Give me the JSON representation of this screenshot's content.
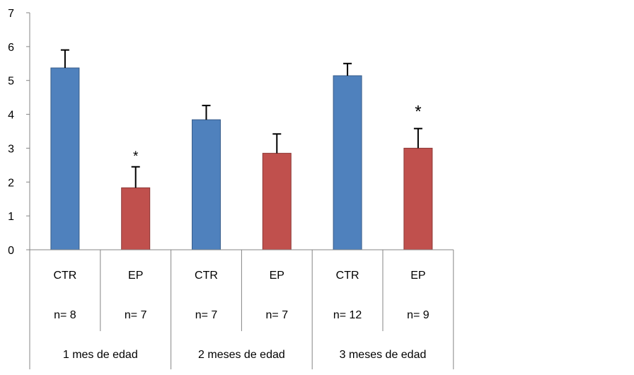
{
  "chart_data": {
    "type": "bar",
    "title": "",
    "xlabel": "",
    "ylabel": "",
    "ylim": [
      0,
      7
    ],
    "yticks": [
      "0",
      "1",
      "2",
      "3",
      "4",
      "5",
      "6",
      "7"
    ],
    "grid": false,
    "legend": "none",
    "categories": [
      "CTR",
      "EP",
      "CTR",
      "EP",
      "CTR",
      "EP"
    ],
    "n_labels": [
      "n= 8",
      "n= 7",
      "n= 7",
      "n= 7",
      "n= 12",
      "n= 9"
    ],
    "groups": [
      "1 mes de edad",
      "2 meses de edad",
      "3 meses de edad"
    ],
    "values": [
      5.37,
      1.83,
      3.84,
      2.85,
      5.14,
      3.0
    ],
    "errors": [
      0.53,
      0.62,
      0.42,
      0.57,
      0.36,
      0.58
    ],
    "significance": [
      "",
      "*",
      "",
      "",
      "",
      "*"
    ],
    "colors": {
      "CTR": "#4f81bd",
      "EP": "#c0504d",
      "CTR_edge": "#385d8a",
      "EP_edge": "#8c3836",
      "axis": "#868686"
    }
  }
}
